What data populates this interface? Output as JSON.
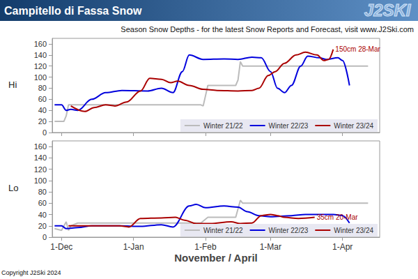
{
  "header": {
    "title": "Campitello di Fassa Snow",
    "logo": "J2SKI",
    "subtitle": "Season Snow Depths - for the latest Snow Reports and Forecast, visit www.J2Ski.com"
  },
  "copyright": "Copyright J2Ski 2024",
  "chart_data": [
    {
      "type": "line",
      "title": "Hi",
      "xlim": [
        26,
        167
      ],
      "xticks": [
        {
          "value": 30,
          "label": "1-Dec"
        },
        {
          "value": 61,
          "label": "1-Jan"
        },
        {
          "value": 92,
          "label": "1-Feb"
        },
        {
          "value": 120,
          "label": "1-Mar"
        },
        {
          "value": 151,
          "label": "1-Apr"
        }
      ],
      "ylim": [
        0,
        170
      ],
      "yticks": [
        0,
        20,
        40,
        60,
        80,
        100,
        120,
        140,
        160
      ],
      "grid": false,
      "legend": "lower right",
      "tick_labels": "y",
      "series": [
        {
          "name": "Winter 21/22",
          "color": "#bbbbbb",
          "x": [
            27,
            31,
            32,
            33,
            90,
            91,
            93,
            105,
            106,
            107,
            108,
            162
          ],
          "values": [
            20,
            20,
            30,
            50,
            50,
            48,
            85,
            85,
            95,
            128,
            120,
            120
          ]
        },
        {
          "name": "Winter 22/23",
          "color": "#0000dd",
          "x": [
            27,
            30,
            32,
            34,
            37,
            43,
            49,
            56,
            67,
            73,
            78,
            82,
            85,
            91,
            100,
            106,
            112,
            116,
            120,
            123,
            126,
            129,
            133,
            136,
            141,
            144,
            149,
            151,
            154
          ],
          "values": [
            50,
            50,
            40,
            42,
            40,
            60,
            72,
            76,
            75,
            80,
            72,
            110,
            140,
            132,
            133,
            132,
            136,
            135,
            110,
            80,
            72,
            85,
            120,
            138,
            135,
            132,
            135,
            130,
            85
          ]
        },
        {
          "name": "Winter 23/24",
          "color": "#aa0000",
          "annotation": "150cm 28-Mar",
          "x": [
            34,
            40,
            44,
            49,
            53,
            58,
            64,
            68,
            73,
            77,
            80,
            85,
            91,
            97,
            106,
            112,
            115,
            119,
            122,
            126,
            131,
            135,
            140,
            143,
            145,
            147
          ],
          "values": [
            48,
            38,
            45,
            50,
            48,
            55,
            75,
            98,
            96,
            90,
            93,
            85,
            78,
            76,
            75,
            76,
            80,
            103,
            110,
            125,
            140,
            145,
            140,
            130,
            132,
            150
          ]
        }
      ]
    },
    {
      "type": "line",
      "title": "Lo",
      "xlabel": "November / April",
      "xlim": [
        26,
        167
      ],
      "xticks": [
        {
          "value": 30,
          "label": "1-Dec"
        },
        {
          "value": 61,
          "label": "1-Jan"
        },
        {
          "value": 92,
          "label": "1-Feb"
        },
        {
          "value": 120,
          "label": "1-Mar"
        },
        {
          "value": 151,
          "label": "1-Apr"
        }
      ],
      "ylim": [
        0,
        170
      ],
      "yticks": [
        0,
        20,
        40,
        60,
        80,
        100,
        120,
        140,
        160
      ],
      "grid": false,
      "legend": "lower right",
      "series": [
        {
          "name": "Winter 21/22",
          "color": "#bbbbbb",
          "x": [
            27,
            30,
            32,
            33,
            34,
            37,
            90,
            93,
            105,
            107,
            108,
            162
          ],
          "values": [
            15,
            12,
            27,
            12,
            20,
            25,
            25,
            35,
            35,
            65,
            60,
            60
          ]
        },
        {
          "name": "Winter 22/23",
          "color": "#0000dd",
          "x": [
            27,
            30,
            32,
            37,
            43,
            55,
            64,
            73,
            78,
            85,
            88,
            92,
            100,
            106,
            110,
            115,
            120,
            129,
            135,
            147,
            151,
            154
          ],
          "values": [
            20,
            20,
            15,
            17,
            20,
            20,
            19,
            22,
            18,
            55,
            58,
            52,
            55,
            53,
            45,
            38,
            36,
            38,
            40,
            40,
            38,
            25
          ]
        },
        {
          "name": "Winter 23/24",
          "color": "#aa0000",
          "annotation": "35cm 20-Mar",
          "x": [
            33,
            43,
            55,
            59,
            64,
            73,
            79,
            83,
            88,
            94,
            103,
            107,
            112,
            116,
            120,
            123,
            126,
            132,
            139
          ],
          "values": [
            20,
            20,
            20,
            18,
            33,
            34,
            35,
            30,
            24,
            24,
            27,
            24,
            25,
            38,
            40,
            38,
            35,
            33,
            35
          ]
        }
      ]
    }
  ]
}
